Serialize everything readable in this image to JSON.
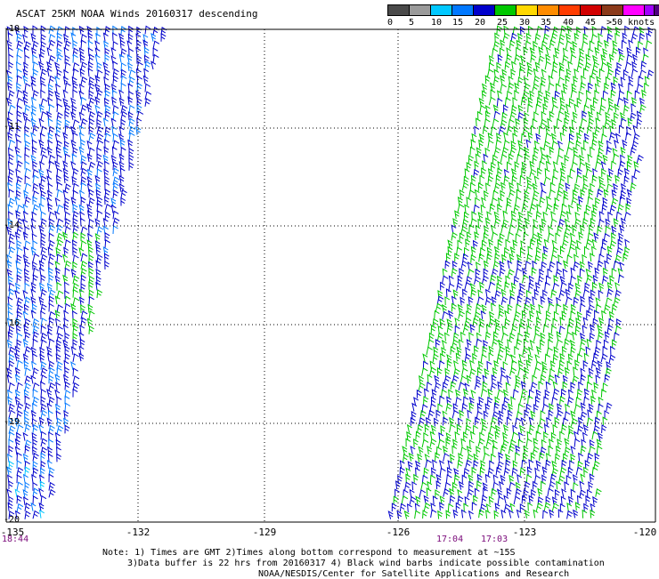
{
  "title": "ASCAT 25KM NOAA Winds 20160317 descending",
  "legend": {
    "colors": [
      "#4a4a4a",
      "#9a9a9a",
      "#00c8ff",
      "#0078ff",
      "#0000cc",
      "#00c800",
      "#ffd800",
      "#ff8c00",
      "#ff3c00",
      "#d20000",
      "#8b3a1a",
      "#ff00ff",
      "#a000ff",
      "#500080"
    ],
    "labels": [
      "0",
      "5",
      "10",
      "15",
      "20",
      "25",
      "30",
      "35",
      "40",
      "45",
      ">50 knots"
    ]
  },
  "axes": {
    "x_ticks": [
      "-135",
      "-132",
      "-129",
      "-126",
      "-123",
      "-120"
    ],
    "y_ticks": [
      "-10",
      "-11",
      "-14",
      "-16",
      "-19",
      "-20"
    ]
  },
  "times": [
    "18:44",
    "17:04",
    "17:03"
  ],
  "notes": {
    "line1": "Note: 1) Times are GMT 2)Times along bottom correspond to measurement at ~15S",
    "line2": "3)Data buffer is 22 hrs from 20160317 4) Black wind barbs indicate possible contamination",
    "line3": "NOAA/NESDIS/Center for Satellite Applications and Research"
  },
  "chart_data": {
    "type": "map",
    "title": "ASCAT 25KM NOAA Winds 20160317 descending",
    "x_range": [
      -135,
      -120
    ],
    "y_range": [
      -20,
      -10
    ],
    "swaths": [
      {
        "name": "west",
        "time": "18:44",
        "lon_top": [
          -135,
          -131.3
        ],
        "lon_bottom": [
          -135,
          -134.1
        ],
        "dominant_speed_knots": "15-20"
      },
      {
        "name": "east",
        "time": "17:04",
        "lon_top": [
          -123.7,
          -120
        ],
        "lon_bottom": [
          -126.2,
          -121.4
        ],
        "dominant_speed_knots": "15-25"
      }
    ]
  }
}
